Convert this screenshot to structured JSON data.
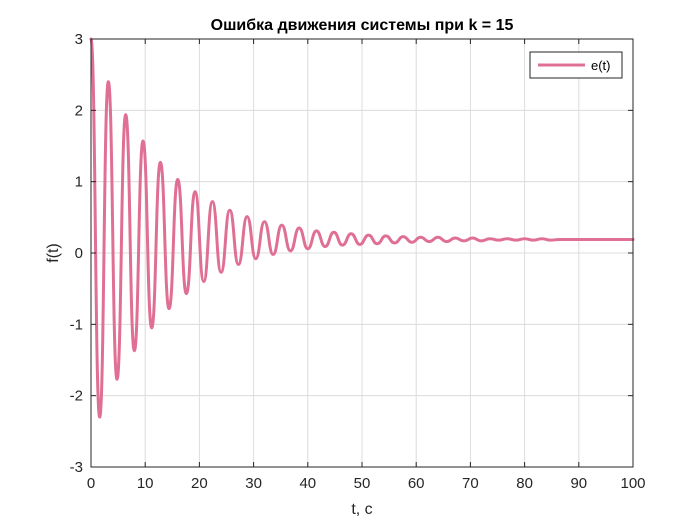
{
  "chart_data": {
    "type": "line",
    "title": "Ошибка движения системы при k = 15",
    "xlabel": "t, c",
    "ylabel": "f(t)",
    "xlim": [
      0,
      100
    ],
    "ylim": [
      -3,
      3
    ],
    "xticks": [
      "0",
      "10",
      "20",
      "30",
      "40",
      "50",
      "60",
      "70",
      "80",
      "90",
      "100"
    ],
    "yticks": [
      "3",
      "2",
      "1",
      "0",
      "-1",
      "-2",
      "-3"
    ],
    "grid": true,
    "legend_position": "top-right",
    "series": [
      {
        "name": "e(t)",
        "color": "#E07093",
        "x": [
          0,
          1.6,
          3.2,
          4.8,
          6.4,
          8.0,
          9.6,
          11.2,
          12.8,
          14.4,
          16.0,
          17.6,
          19.2,
          20.8,
          22.4,
          24.0,
          25.6,
          27.2,
          28.8,
          30.4,
          32.0,
          33.6,
          35.2,
          36.8,
          38.4,
          40.0,
          41.6,
          43.2,
          44.8,
          46.4,
          48.0,
          49.6,
          51.2,
          52.8,
          54.4,
          56.0,
          57.6,
          59.2,
          60.8,
          62.4,
          64.0,
          65.6,
          67.2,
          68.8,
          70.4,
          72.0,
          73.6,
          75.2,
          76.8,
          78.4,
          80.0,
          81.6,
          83.2,
          84.8,
          86.4,
          88.0,
          89.6,
          91.2,
          92.8,
          94.4,
          96.0,
          97.6,
          99.2,
          100
        ],
        "y": [
          3.0,
          -2.3,
          2.4,
          -1.77,
          1.94,
          -1.37,
          1.57,
          -1.05,
          1.27,
          -0.78,
          1.03,
          -0.57,
          0.86,
          -0.4,
          0.72,
          -0.27,
          0.6,
          -0.16,
          0.51,
          -0.08,
          0.44,
          -0.02,
          0.39,
          0.03,
          0.35,
          0.06,
          0.31,
          0.09,
          0.29,
          0.11,
          0.27,
          0.12,
          0.25,
          0.13,
          0.24,
          0.14,
          0.23,
          0.15,
          0.22,
          0.16,
          0.22,
          0.16,
          0.21,
          0.17,
          0.21,
          0.17,
          0.2,
          0.18,
          0.2,
          0.18,
          0.2,
          0.18,
          0.2,
          0.18,
          0.19,
          0.19,
          0.19,
          0.19,
          0.19,
          0.19,
          0.19,
          0.19,
          0.19,
          0.19
        ]
      }
    ]
  }
}
